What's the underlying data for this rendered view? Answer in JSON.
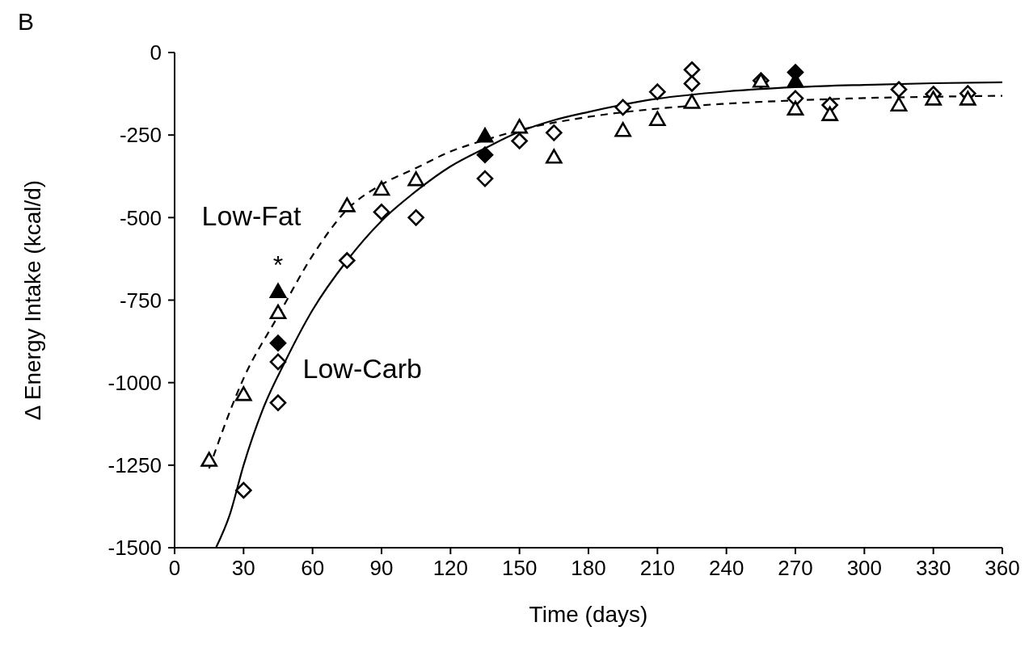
{
  "chart_data": {
    "type": "scatter",
    "xlabel": "Time (days)",
    "ylabel": "Δ Energy Intake (kcal/d)",
    "xlim": [
      0,
      360
    ],
    "xticks": [
      0,
      30,
      60,
      90,
      120,
      150,
      180,
      210,
      240,
      270,
      300,
      330,
      360
    ],
    "ylim": [
      -1500,
      0
    ],
    "yticks": [
      0,
      -250,
      -500,
      -750,
      -1000,
      -1250,
      -1500
    ],
    "grid": false,
    "annotations": [
      "B",
      {
        "text": "*",
        "x": 45,
        "y": -724
      }
    ],
    "series": [
      {
        "type": "line",
        "name": "Low-Fat",
        "color": "#000000",
        "line_style": "dashed",
        "marker": "none",
        "x": [
          15,
          30,
          45,
          60,
          75,
          90,
          105,
          120,
          135,
          150,
          180,
          210,
          240,
          270,
          300,
          330,
          360
        ],
        "values": [
          -1260,
          -987,
          -798,
          -615,
          -476,
          -400,
          -350,
          -300,
          -265,
          -235,
          -195,
          -170,
          -155,
          -145,
          -138,
          -134,
          -131
        ]
      },
      {
        "type": "line",
        "name": "Low-Carb",
        "color": "#000000",
        "line_style": "solid",
        "marker": "none",
        "x": [
          18,
          24,
          30,
          39,
          48,
          60,
          75,
          90,
          105,
          120,
          135,
          150,
          165,
          180,
          210,
          240,
          270,
          300,
          330,
          360
        ],
        "values": [
          -1500,
          -1400,
          -1250,
          -1070,
          -937,
          -780,
          -630,
          -510,
          -420,
          -345,
          -290,
          -240,
          -205,
          -180,
          -140,
          -118,
          -105,
          -98,
          -93,
          -90
        ]
      },
      {
        "color": "#ffffff",
        "marker": "diamond",
        "x": [
          30,
          45,
          45,
          75,
          90,
          105,
          135,
          150,
          165,
          195,
          210,
          225,
          225,
          255,
          270,
          285,
          315,
          330,
          345
        ],
        "values": [
          -1326,
          -1061,
          -937,
          -630,
          -483,
          -500,
          -382,
          -268,
          -243,
          -166,
          -119,
          -52,
          -94,
          -85,
          -139,
          -159,
          -112,
          -126,
          -124
        ]
      },
      {
        "color": "#ffffff",
        "marker": "triangle",
        "x": [
          15,
          30,
          45,
          75,
          90,
          105,
          150,
          165,
          195,
          210,
          225,
          255,
          270,
          285,
          315,
          330,
          345
        ],
        "values": [
          -1235,
          -1036,
          -788,
          -464,
          -414,
          -385,
          -226,
          -317,
          -236,
          -203,
          -151,
          -87,
          -171,
          -188,
          -159,
          -141,
          -141
        ]
      },
      {
        "color": "#000000",
        "marker": "triangle",
        "x": [
          45,
          135,
          270
        ],
        "values": [
          -724,
          -253,
          -87
        ]
      },
      {
        "color": "#000000",
        "marker": "diamond",
        "x": [
          45,
          135,
          270
        ],
        "values": [
          -880,
          -310,
          -60
        ]
      }
    ]
  }
}
